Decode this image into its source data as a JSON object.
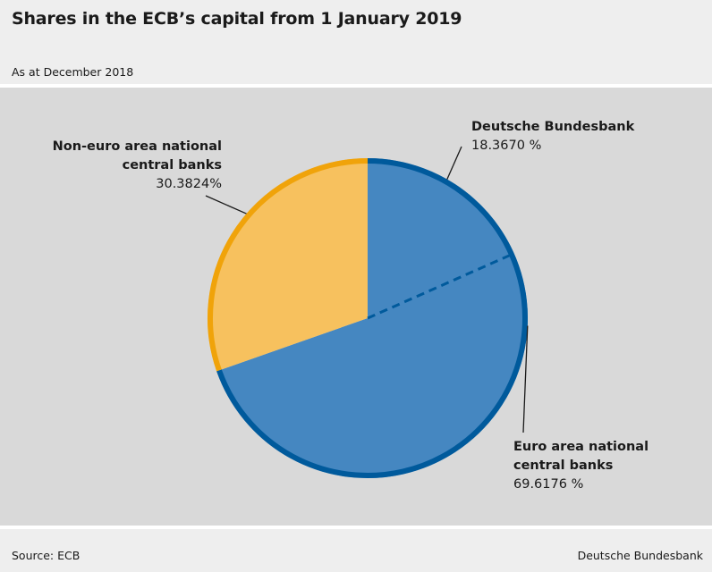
{
  "header": {
    "title": "Shares in the ECB’s capital from 1 January 2019",
    "subtitle": "As at December 2018"
  },
  "footer": {
    "source": "Source: ECB",
    "brand": "Deutsche Bundesbank"
  },
  "colors": {
    "euro_fill": "#4587c1",
    "euro_stroke": "#005a9c",
    "noneuro_fill": "#f7c15e",
    "noneuro_stroke": "#f0a30a",
    "plot_bg": "#d9d9d9"
  },
  "chart_data": {
    "type": "pie",
    "slices": [
      {
        "name": "Euro area national central banks",
        "value": 69.6176,
        "label_lines": [
          "Euro area national",
          "central banks"
        ],
        "value_label": "69.6176 %"
      },
      {
        "name": "Non-euro area national central banks",
        "value": 30.3824,
        "label_lines": [
          "Non-euro area national",
          "central banks"
        ],
        "value_label": "30.3824%"
      }
    ],
    "sub_share": {
      "name": "Deutsche Bundesbank",
      "value": 18.367,
      "within": "Euro area national central banks",
      "label_lines": [
        "Deutsche Bundesbank"
      ],
      "value_label": "18.3670 %"
    }
  }
}
